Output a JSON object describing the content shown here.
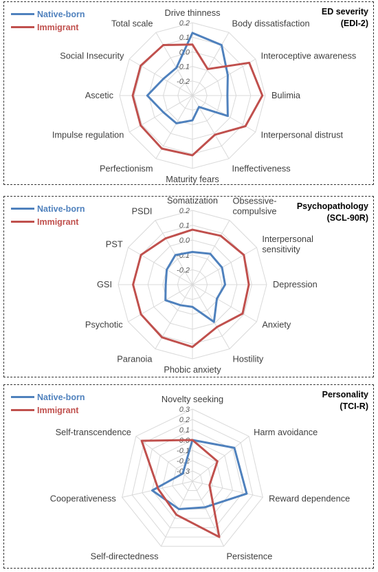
{
  "chart_data": [
    {
      "type": "radar",
      "title_lines": [
        "ED severity",
        "(EDI-2)"
      ],
      "categories": [
        "Drive thinness",
        "Body dissatisfaction",
        "Interoceptive awareness",
        "Bulimia",
        "Interpersonal distrust",
        "Ineffectiveness",
        "Maturity fears",
        "Perfectionism",
        "Impulse regulation",
        "Ascetic",
        "Social Insecurity",
        "Total scale"
      ],
      "r_ticks": [
        -0.2,
        -0.1,
        0.0,
        0.1,
        0.2
      ],
      "r_tick_labels": [
        "-0.2",
        "-0.1",
        "0.0",
        "0.1",
        "0.2"
      ],
      "rlim": [
        -0.3,
        0.2
      ],
      "series": [
        {
          "name": "Native-born",
          "color": "#4F81BD",
          "values": [
            0.13,
            0.1,
            -0.02,
            -0.06,
            -0.02,
            -0.21,
            -0.13,
            -0.08,
            -0.07,
            0.01,
            -0.07,
            -0.08
          ]
        },
        {
          "name": "Immigrant",
          "color": "#C0504D",
          "values": [
            0.05,
            -0.09,
            0.15,
            0.18,
            0.12,
            0.01,
            0.11,
            0.12,
            0.11,
            0.11,
            0.11,
            0.1
          ]
        }
      ]
    },
    {
      "type": "radar",
      "title_lines": [
        "Psychopathology",
        "(SCL-90R)"
      ],
      "categories": [
        "Somatization",
        "Obsessive-compulsive",
        "Interpersonal sensitivity",
        "Depression",
        "Anxiety",
        "Hostility",
        "Phobic anxiety",
        "Paranoia",
        "Psychotic",
        "GSI",
        "PST",
        "PSDI"
      ],
      "category_lines": [
        [
          "Somatization"
        ],
        [
          "Obsessive-",
          "compulsive"
        ],
        [
          "Interpersonal",
          "sensitivity"
        ],
        [
          "Depression"
        ],
        [
          "Anxiety"
        ],
        [
          "Hostility"
        ],
        [
          "Phobic anxiety"
        ],
        [
          "Paranoia"
        ],
        [
          "Psychotic"
        ],
        [
          "GSI"
        ],
        [
          "PST"
        ],
        [
          "PSDI"
        ]
      ],
      "r_ticks": [
        -0.2,
        -0.1,
        0.0,
        0.1,
        0.2
      ],
      "r_tick_labels": [
        "-0.2",
        "-0.1",
        "0.0",
        "0.1",
        "0.2"
      ],
      "rlim": [
        -0.3,
        0.2
      ],
      "series": [
        {
          "name": "Native-born",
          "color": "#4F81BD",
          "values": [
            -0.08,
            -0.06,
            -0.07,
            -0.08,
            -0.11,
            -0.01,
            -0.15,
            -0.14,
            -0.09,
            -0.12,
            -0.1,
            -0.07
          ]
        },
        {
          "name": "Immigrant",
          "color": "#C0504D",
          "values": [
            0.07,
            0.08,
            0.1,
            0.08,
            0.09,
            0.03,
            0.12,
            0.11,
            0.1,
            0.1,
            0.1,
            0.06
          ]
        }
      ]
    },
    {
      "type": "radar",
      "title_lines": [
        "Personality",
        "(TCI-R)"
      ],
      "categories": [
        "Novelty seeking",
        "Harm avoidance",
        "Reward dependence",
        "Persistence",
        "Self-directedness",
        "Cooperativeness",
        "Self-transcendence"
      ],
      "r_ticks": [
        -0.3,
        -0.2,
        -0.1,
        0.0,
        0.1,
        0.2,
        0.3
      ],
      "r_tick_labels": [
        "-0.3",
        "-0.2",
        "-0.1",
        "0.0",
        "0.1",
        "0.2",
        "0.3"
      ],
      "rlim": [
        -0.4,
        0.3
      ],
      "series": [
        {
          "name": "Native-born",
          "color": "#4F81BD",
          "values": [
            0.0,
            0.12,
            0.14,
            -0.12,
            -0.1,
            0.0,
            -0.28
          ]
        },
        {
          "name": "Immigrant",
          "color": "#C0504D",
          "values": [
            0.0,
            -0.09,
            -0.23,
            0.2,
            -0.04,
            -0.06,
            0.23
          ]
        }
      ]
    }
  ]
}
